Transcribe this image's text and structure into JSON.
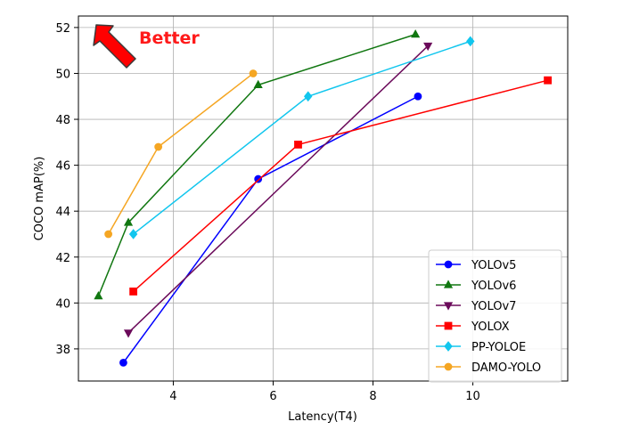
{
  "chart_data": {
    "type": "line",
    "title": "",
    "xlabel": "Latency(T4)",
    "ylabel": "COCO mAP(%)",
    "xlim": [
      2.1,
      11.9
    ],
    "ylim": [
      36.6,
      52.5
    ],
    "xticks": [
      4,
      6,
      8,
      10
    ],
    "yticks": [
      38,
      40,
      42,
      44,
      46,
      48,
      50,
      52
    ],
    "xtick_labels": [
      "4",
      "6",
      "8",
      "10"
    ],
    "ytick_labels": [
      "38",
      "40",
      "42",
      "44",
      "46",
      "48",
      "50",
      "52"
    ],
    "grid": true,
    "legend_position": "lower-right",
    "annotation": {
      "text": "Better",
      "color": "#ff1a1a"
    },
    "series": [
      {
        "name": "YOLOv5",
        "color": "#0000ff",
        "marker": "circle",
        "x": [
          3.0,
          5.7,
          8.9
        ],
        "y": [
          37.4,
          45.4,
          49.0
        ]
      },
      {
        "name": "YOLOv6",
        "color": "#117711",
        "marker": "triangle-up",
        "x": [
          2.5,
          3.1,
          5.7,
          8.85
        ],
        "y": [
          40.3,
          43.5,
          49.5,
          51.7
        ]
      },
      {
        "name": "YOLOv7",
        "color": "#6b0a5a",
        "marker": "triangle-down",
        "x": [
          3.1,
          9.1
        ],
        "y": [
          38.7,
          51.2
        ]
      },
      {
        "name": "YOLOX",
        "color": "#ff0000",
        "marker": "square",
        "x": [
          3.2,
          6.5,
          11.5
        ],
        "y": [
          40.5,
          46.9,
          49.7
        ]
      },
      {
        "name": "PP-YOLOE",
        "color": "#11c6ee",
        "marker": "diamond",
        "x": [
          3.2,
          6.7,
          9.95
        ],
        "y": [
          43.0,
          49.0,
          51.4
        ]
      },
      {
        "name": "DAMO-YOLO",
        "color": "#f5a623",
        "marker": "circle",
        "x": [
          2.7,
          3.7,
          5.6
        ],
        "y": [
          43.0,
          46.8,
          50.0
        ]
      }
    ]
  }
}
